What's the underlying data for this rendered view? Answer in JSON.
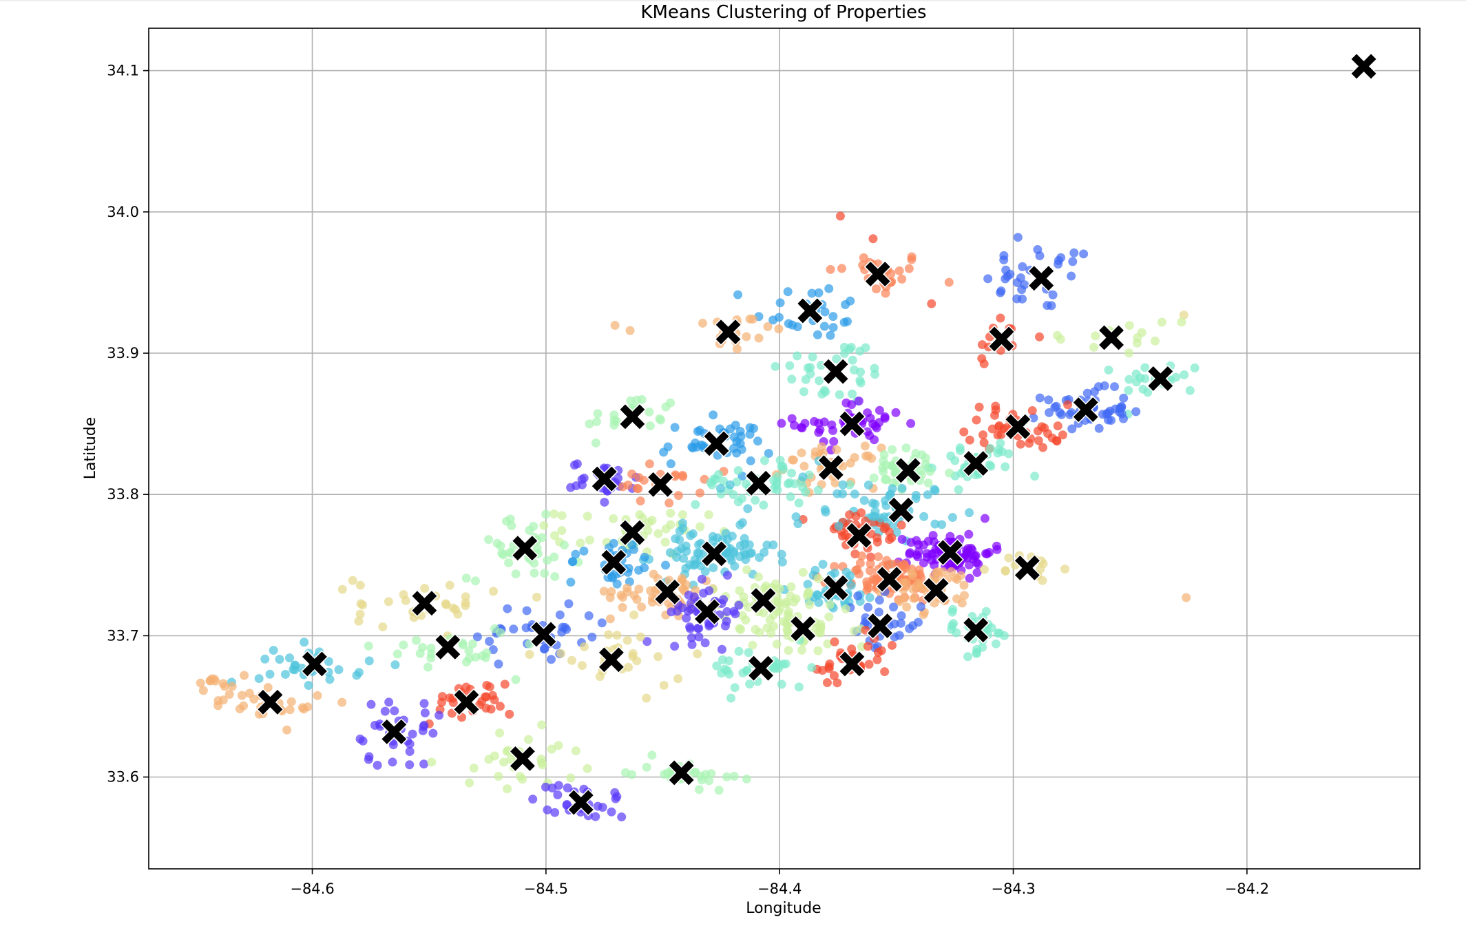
{
  "chart_data": {
    "type": "scatter",
    "title": "KMeans Clustering of Properties",
    "xlabel": "Longitude",
    "ylabel": "Latitude",
    "xlim": [
      -84.67,
      -84.126
    ],
    "ylim": [
      33.535,
      34.13
    ],
    "xticks": [
      -84.6,
      -84.5,
      -84.4,
      -84.3,
      -84.2
    ],
    "xtick_labels": [
      "−84.6",
      "−84.5",
      "−84.4",
      "−84.3",
      "−84.2"
    ],
    "yticks": [
      33.6,
      33.7,
      33.8,
      33.9,
      34.0,
      34.1
    ],
    "ytick_labels": [
      "33.6",
      "33.7",
      "33.8",
      "33.9",
      "34.0",
      "34.1"
    ],
    "grid": true,
    "point_opacity": 0.7,
    "centroid_color": "#000000",
    "centroid_marker": "X",
    "centroids": [
      [
        -84.15,
        34.103
      ],
      [
        -84.358,
        33.956
      ],
      [
        -84.288,
        33.953
      ],
      [
        -84.387,
        33.93
      ],
      [
        -84.422,
        33.915
      ],
      [
        -84.305,
        33.91
      ],
      [
        -84.258,
        33.911
      ],
      [
        -84.376,
        33.887
      ],
      [
        -84.237,
        33.882
      ],
      [
        -84.463,
        33.855
      ],
      [
        -84.269,
        33.86
      ],
      [
        -84.369,
        33.85
      ],
      [
        -84.298,
        33.848
      ],
      [
        -84.427,
        33.836
      ],
      [
        -84.316,
        33.822
      ],
      [
        -84.378,
        33.819
      ],
      [
        -84.345,
        33.817
      ],
      [
        -84.475,
        33.811
      ],
      [
        -84.451,
        33.807
      ],
      [
        -84.409,
        33.808
      ],
      [
        -84.348,
        33.789
      ],
      [
        -84.463,
        33.773
      ],
      [
        -84.366,
        33.771
      ],
      [
        -84.509,
        33.762
      ],
      [
        -84.428,
        33.758
      ],
      [
        -84.327,
        33.759
      ],
      [
        -84.471,
        33.752
      ],
      [
        -84.294,
        33.748
      ],
      [
        -84.353,
        33.74
      ],
      [
        -84.376,
        33.734
      ],
      [
        -84.333,
        33.732
      ],
      [
        -84.448,
        33.731
      ],
      [
        -84.407,
        33.725
      ],
      [
        -84.552,
        33.723
      ],
      [
        -84.431,
        33.717
      ],
      [
        -84.357,
        33.707
      ],
      [
        -84.39,
        33.705
      ],
      [
        -84.316,
        33.704
      ],
      [
        -84.501,
        33.701
      ],
      [
        -84.542,
        33.692
      ],
      [
        -84.472,
        33.683
      ],
      [
        -84.599,
        33.68
      ],
      [
        -84.369,
        33.68
      ],
      [
        -84.408,
        33.677
      ],
      [
        -84.534,
        33.653
      ],
      [
        -84.618,
        33.653
      ],
      [
        -84.565,
        33.632
      ],
      [
        -84.51,
        33.613
      ],
      [
        -84.442,
        33.603
      ],
      [
        -84.485,
        33.582
      ]
    ],
    "palette": [
      "#7f00ff",
      "#5a3bfa",
      "#3e68f3",
      "#2b9be8",
      "#4dc3dc",
      "#7beacb",
      "#a8f4b2",
      "#cbef9c",
      "#e6d88a",
      "#f5b173",
      "#fb8155",
      "#f5472c"
    ],
    "point_clusters": [
      {
        "color": 10,
        "cx": -84.358,
        "cy": 33.956,
        "sx": 0.011,
        "sy": 0.008,
        "n": 30
      },
      {
        "color": 2,
        "cx": -84.288,
        "cy": 33.953,
        "sx": 0.012,
        "sy": 0.012,
        "n": 30
      },
      {
        "color": 3,
        "cx": -84.387,
        "cy": 33.93,
        "sx": 0.012,
        "sy": 0.01,
        "n": 28
      },
      {
        "color": 9,
        "cx": -84.422,
        "cy": 33.915,
        "sx": 0.012,
        "sy": 0.01,
        "n": 20
      },
      {
        "color": 11,
        "cx": -84.305,
        "cy": 33.91,
        "sx": 0.007,
        "sy": 0.01,
        "n": 14
      },
      {
        "color": 7,
        "cx": -84.258,
        "cy": 33.911,
        "sx": 0.015,
        "sy": 0.008,
        "n": 14
      },
      {
        "color": 5,
        "cx": -84.376,
        "cy": 33.887,
        "sx": 0.012,
        "sy": 0.012,
        "n": 36
      },
      {
        "color": 5,
        "cx": -84.237,
        "cy": 33.882,
        "sx": 0.009,
        "sy": 0.006,
        "n": 22
      },
      {
        "color": 6,
        "cx": -84.463,
        "cy": 33.855,
        "sx": 0.01,
        "sy": 0.008,
        "n": 22
      },
      {
        "color": 2,
        "cx": -84.269,
        "cy": 33.86,
        "sx": 0.009,
        "sy": 0.007,
        "n": 50
      },
      {
        "color": 0,
        "cx": -84.369,
        "cy": 33.85,
        "sx": 0.012,
        "sy": 0.008,
        "n": 45
      },
      {
        "color": 11,
        "cx": -84.298,
        "cy": 33.848,
        "sx": 0.011,
        "sy": 0.008,
        "n": 45
      },
      {
        "color": 3,
        "cx": -84.427,
        "cy": 33.836,
        "sx": 0.012,
        "sy": 0.008,
        "n": 40
      },
      {
        "color": 5,
        "cx": -84.316,
        "cy": 33.822,
        "sx": 0.009,
        "sy": 0.008,
        "n": 32
      },
      {
        "color": 9,
        "cx": -84.378,
        "cy": 33.819,
        "sx": 0.01,
        "sy": 0.007,
        "n": 35
      },
      {
        "color": 6,
        "cx": -84.345,
        "cy": 33.817,
        "sx": 0.01,
        "sy": 0.008,
        "n": 38
      },
      {
        "color": 1,
        "cx": -84.475,
        "cy": 33.811,
        "sx": 0.007,
        "sy": 0.006,
        "n": 32
      },
      {
        "color": 10,
        "cx": -84.451,
        "cy": 33.807,
        "sx": 0.009,
        "sy": 0.007,
        "n": 22
      },
      {
        "color": 5,
        "cx": -84.409,
        "cy": 33.808,
        "sx": 0.013,
        "sy": 0.008,
        "n": 45
      },
      {
        "color": 4,
        "cx": -84.348,
        "cy": 33.789,
        "sx": 0.01,
        "sy": 0.01,
        "n": 40
      },
      {
        "color": 7,
        "cx": -84.463,
        "cy": 33.773,
        "sx": 0.016,
        "sy": 0.008,
        "n": 40
      },
      {
        "color": 11,
        "cx": -84.366,
        "cy": 33.771,
        "sx": 0.01,
        "sy": 0.01,
        "n": 40
      },
      {
        "color": 6,
        "cx": -84.509,
        "cy": 33.762,
        "sx": 0.012,
        "sy": 0.011,
        "n": 35
      },
      {
        "color": 4,
        "cx": -84.428,
        "cy": 33.758,
        "sx": 0.013,
        "sy": 0.009,
        "n": 80
      },
      {
        "color": 0,
        "cx": -84.327,
        "cy": 33.759,
        "sx": 0.009,
        "sy": 0.007,
        "n": 90
      },
      {
        "color": 3,
        "cx": -84.471,
        "cy": 33.752,
        "sx": 0.01,
        "sy": 0.009,
        "n": 32
      },
      {
        "color": 8,
        "cx": -84.294,
        "cy": 33.748,
        "sx": 0.007,
        "sy": 0.005,
        "n": 18
      },
      {
        "color": 10,
        "cx": -84.353,
        "cy": 33.74,
        "sx": 0.01,
        "sy": 0.008,
        "n": 80
      },
      {
        "color": 4,
        "cx": -84.376,
        "cy": 33.734,
        "sx": 0.009,
        "sy": 0.008,
        "n": 35
      },
      {
        "color": 9,
        "cx": -84.333,
        "cy": 33.732,
        "sx": 0.009,
        "sy": 0.008,
        "n": 40
      },
      {
        "color": 9,
        "cx": -84.448,
        "cy": 33.731,
        "sx": 0.012,
        "sy": 0.008,
        "n": 50
      },
      {
        "color": 7,
        "cx": -84.407,
        "cy": 33.725,
        "sx": 0.012,
        "sy": 0.01,
        "n": 55
      },
      {
        "color": 8,
        "cx": -84.552,
        "cy": 33.723,
        "sx": 0.015,
        "sy": 0.01,
        "n": 30
      },
      {
        "color": 1,
        "cx": -84.431,
        "cy": 33.717,
        "sx": 0.008,
        "sy": 0.01,
        "n": 50
      },
      {
        "color": 2,
        "cx": -84.357,
        "cy": 33.707,
        "sx": 0.009,
        "sy": 0.01,
        "n": 28
      },
      {
        "color": 7,
        "cx": -84.39,
        "cy": 33.705,
        "sx": 0.011,
        "sy": 0.01,
        "n": 40
      },
      {
        "color": 5,
        "cx": -84.316,
        "cy": 33.704,
        "sx": 0.008,
        "sy": 0.008,
        "n": 32
      },
      {
        "color": 2,
        "cx": -84.501,
        "cy": 33.701,
        "sx": 0.014,
        "sy": 0.012,
        "n": 35
      },
      {
        "color": 6,
        "cx": -84.542,
        "cy": 33.692,
        "sx": 0.014,
        "sy": 0.008,
        "n": 26
      },
      {
        "color": 8,
        "cx": -84.472,
        "cy": 33.683,
        "sx": 0.016,
        "sy": 0.012,
        "n": 28
      },
      {
        "color": 4,
        "cx": -84.599,
        "cy": 33.68,
        "sx": 0.012,
        "sy": 0.007,
        "n": 30
      },
      {
        "color": 11,
        "cx": -84.369,
        "cy": 33.68,
        "sx": 0.01,
        "sy": 0.01,
        "n": 30
      },
      {
        "color": 5,
        "cx": -84.408,
        "cy": 33.677,
        "sx": 0.011,
        "sy": 0.008,
        "n": 32
      },
      {
        "color": 11,
        "cx": -84.534,
        "cy": 33.653,
        "sx": 0.01,
        "sy": 0.007,
        "n": 28
      },
      {
        "color": 9,
        "cx": -84.618,
        "cy": 33.653,
        "sx": 0.012,
        "sy": 0.008,
        "n": 30
      },
      {
        "color": 1,
        "cx": -84.565,
        "cy": 33.632,
        "sx": 0.01,
        "sy": 0.012,
        "n": 32
      },
      {
        "color": 7,
        "cx": -84.51,
        "cy": 33.613,
        "sx": 0.013,
        "sy": 0.01,
        "n": 30
      },
      {
        "color": 6,
        "cx": -84.442,
        "cy": 33.603,
        "sx": 0.011,
        "sy": 0.005,
        "n": 30
      },
      {
        "color": 1,
        "cx": -84.485,
        "cy": 33.582,
        "sx": 0.01,
        "sy": 0.007,
        "n": 28
      },
      {
        "color": 4,
        "cx": -84.385,
        "cy": 33.795,
        "sx": 0.02,
        "sy": 0.01,
        "n": 20
      },
      {
        "color": 9,
        "cx": -84.64,
        "cy": 33.668,
        "sx": 0.005,
        "sy": 0.004,
        "n": 8
      }
    ],
    "outlier_points": [
      {
        "color": 11,
        "x": -84.374,
        "y": 33.997
      },
      {
        "color": 11,
        "x": -84.36,
        "y": 33.981
      },
      {
        "color": 2,
        "x": -84.298,
        "y": 33.982
      },
      {
        "color": 2,
        "x": -84.274,
        "y": 33.971
      },
      {
        "color": 9,
        "x": -84.464,
        "y": 33.916
      },
      {
        "color": 8,
        "x": -84.227,
        "y": 33.927
      },
      {
        "color": 7,
        "x": -84.228,
        "y": 33.922
      },
      {
        "color": 9,
        "x": -84.226,
        "y": 33.727
      },
      {
        "color": 11,
        "x": -84.335,
        "y": 33.935
      }
    ]
  }
}
